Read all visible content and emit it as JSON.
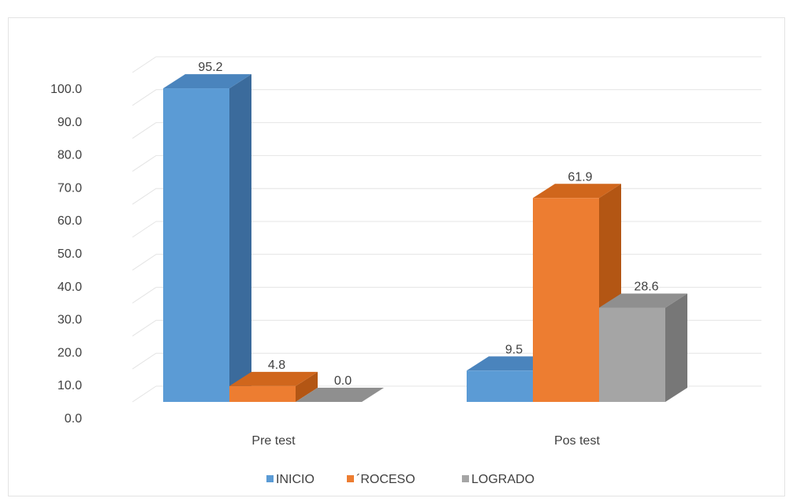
{
  "chart_data": {
    "type": "bar",
    "title": "",
    "xlabel": "",
    "ylabel": "",
    "categories": [
      "Pre test",
      "Pos test"
    ],
    "series": [
      {
        "name": "INICIO",
        "values": [
          95.2,
          9.5
        ],
        "labels": [
          "95.2",
          "9.5"
        ]
      },
      {
        "name": "´ROCESO",
        "values": [
          4.8,
          61.9
        ],
        "labels": [
          "4.8",
          "61.9"
        ]
      },
      {
        "name": "LOGRADO",
        "values": [
          0.0,
          28.6
        ],
        "labels": [
          "0.0",
          "28.6"
        ]
      }
    ],
    "ylim": [
      0,
      100
    ],
    "yticks": [
      "0.0",
      "10.0",
      "20.0",
      "30.0",
      "40.0",
      "50.0",
      "60.0",
      "70.0",
      "80.0",
      "90.0",
      "100.0"
    ],
    "grid": true,
    "legend_position": "bottom",
    "style": "3d-column",
    "colors": {
      "INICIO": {
        "front": "#5b9bd5",
        "top": "#4a84bd",
        "side": "#3b6b9c"
      },
      "´ROCESO": {
        "front": "#ed7d31",
        "top": "#d0661c",
        "side": "#b35614"
      },
      "LOGRADO": {
        "front": "#a5a5a5",
        "top": "#8f8f8f",
        "side": "#777777"
      }
    }
  }
}
